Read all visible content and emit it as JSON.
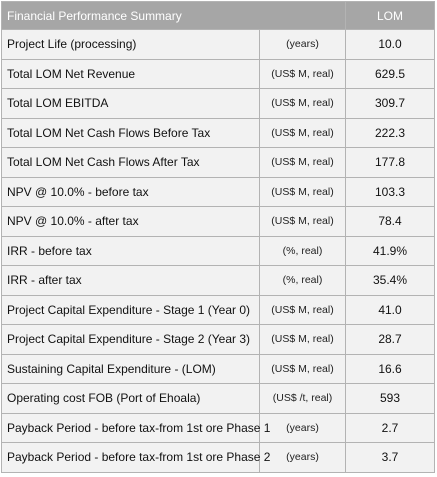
{
  "table": {
    "header": {
      "title": "Financial Performance Summary",
      "lom_label": "LOM"
    },
    "rows": [
      {
        "metric": "Project Life (processing)",
        "unit": "(years)",
        "value": "10.0"
      },
      {
        "metric": "Total LOM Net Revenue",
        "unit": "(US$ M, real)",
        "value": "629.5"
      },
      {
        "metric": "Total LOM EBITDA",
        "unit": "(US$ M, real)",
        "value": "309.7"
      },
      {
        "metric": "Total LOM Net Cash Flows Before Tax",
        "unit": "(US$ M, real)",
        "value": "222.3"
      },
      {
        "metric": "Total LOM Net Cash Flows After Tax",
        "unit": "(US$ M, real)",
        "value": "177.8"
      },
      {
        "metric": "NPV @ 10.0% - before tax",
        "unit": "(US$ M, real)",
        "value": "103.3"
      },
      {
        "metric": "NPV @ 10.0% - after tax",
        "unit": "(US$ M, real)",
        "value": "78.4"
      },
      {
        "metric": "IRR - before tax",
        "unit": "(%, real)",
        "value": "41.9%"
      },
      {
        "metric": "IRR - after tax",
        "unit": "(%, real)",
        "value": "35.4%"
      },
      {
        "metric": "Project Capital Expenditure - Stage 1 (Year 0)",
        "unit": "(US$ M, real)",
        "value": "41.0"
      },
      {
        "metric": "Project Capital Expenditure - Stage 2 (Year 3)",
        "unit": "(US$ M, real)",
        "value": "28.7"
      },
      {
        "metric": "Sustaining Capital Expenditure - (LOM)",
        "unit": "(US$ M, real)",
        "value": "16.6"
      },
      {
        "metric": "Operating cost FOB (Port of Ehoala)",
        "unit": "(US$ /t, real)",
        "value": "593"
      },
      {
        "metric": "Payback Period - before tax-from 1st ore Phase 1",
        "unit": "(years)",
        "value": "2.7"
      },
      {
        "metric": "Payback Period - before tax-from 1st ore Phase 2",
        "unit": "(years)",
        "value": "3.7"
      }
    ]
  }
}
